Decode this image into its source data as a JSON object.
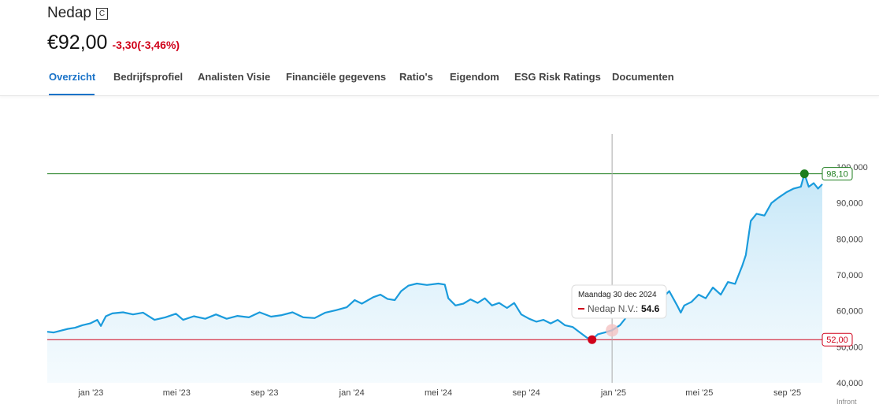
{
  "header": {
    "company": "Nedap",
    "badge": "C",
    "price": "€92,00",
    "change": "-3,30(-3,46%)"
  },
  "tabs": [
    {
      "label": "Overzicht",
      "active": true
    },
    {
      "label": "Bedrijfsprofiel",
      "active": false
    },
    {
      "label": "Analisten Visie",
      "active": false
    },
    {
      "label": "Financiële gegevens",
      "active": false
    },
    {
      "label": "Ratio's",
      "active": false
    },
    {
      "label": "Eigendom",
      "active": false
    },
    {
      "label": "ESG Risk Ratings",
      "active": false
    },
    {
      "label": "Documenten",
      "active": false
    }
  ],
  "colors": {
    "accent": "#1a73c8",
    "line": "#1a9bdc",
    "negative": "#d0021b",
    "high": "#1e7e1e",
    "low": "#d0021b"
  },
  "chart_data": {
    "type": "area",
    "series": [
      {
        "name": "Nedap N.V.",
        "points": [
          [
            "2022-11-01",
            54.2
          ],
          [
            "2022-11-10",
            54.0
          ],
          [
            "2022-11-20",
            54.5
          ],
          [
            "2022-11-30",
            55.0
          ],
          [
            "2022-12-10",
            55.3
          ],
          [
            "2022-12-20",
            56.0
          ],
          [
            "2022-12-31",
            56.5
          ],
          [
            "2023-01-10",
            57.5
          ],
          [
            "2023-01-15",
            55.8
          ],
          [
            "2023-01-22",
            58.5
          ],
          [
            "2023-01-31",
            59.3
          ],
          [
            "2023-02-15",
            59.6
          ],
          [
            "2023-03-01",
            59.0
          ],
          [
            "2023-03-15",
            59.5
          ],
          [
            "2023-03-31",
            57.5
          ],
          [
            "2023-04-15",
            58.2
          ],
          [
            "2023-04-30",
            59.2
          ],
          [
            "2023-05-10",
            57.5
          ],
          [
            "2023-05-25",
            58.5
          ],
          [
            "2023-06-10",
            57.8
          ],
          [
            "2023-06-25",
            59.0
          ],
          [
            "2023-07-10",
            57.8
          ],
          [
            "2023-07-25",
            58.6
          ],
          [
            "2023-08-10",
            58.2
          ],
          [
            "2023-08-25",
            59.6
          ],
          [
            "2023-09-10",
            58.4
          ],
          [
            "2023-09-25",
            58.8
          ],
          [
            "2023-10-10",
            59.6
          ],
          [
            "2023-10-25",
            58.2
          ],
          [
            "2023-11-10",
            58.0
          ],
          [
            "2023-11-25",
            59.5
          ],
          [
            "2023-12-10",
            60.2
          ],
          [
            "2023-12-25",
            61.0
          ],
          [
            "2024-01-05",
            63.0
          ],
          [
            "2024-01-15",
            62.0
          ],
          [
            "2024-01-31",
            63.8
          ],
          [
            "2024-02-10",
            64.5
          ],
          [
            "2024-02-20",
            63.3
          ],
          [
            "2024-03-01",
            63.0
          ],
          [
            "2024-03-10",
            65.5
          ],
          [
            "2024-03-20",
            67.0
          ],
          [
            "2024-04-01",
            67.6
          ],
          [
            "2024-04-15",
            67.2
          ],
          [
            "2024-05-01",
            67.6
          ],
          [
            "2024-05-10",
            67.3
          ],
          [
            "2024-05-15",
            63.5
          ],
          [
            "2024-05-25",
            61.5
          ],
          [
            "2024-06-05",
            62.0
          ],
          [
            "2024-06-15",
            63.2
          ],
          [
            "2024-06-25",
            62.2
          ],
          [
            "2024-07-05",
            63.5
          ],
          [
            "2024-07-15",
            61.5
          ],
          [
            "2024-07-25",
            62.2
          ],
          [
            "2024-08-05",
            60.8
          ],
          [
            "2024-08-15",
            62.2
          ],
          [
            "2024-08-25",
            59.0
          ],
          [
            "2024-09-05",
            57.8
          ],
          [
            "2024-09-15",
            57.0
          ],
          [
            "2024-09-25",
            57.5
          ],
          [
            "2024-10-05",
            56.5
          ],
          [
            "2024-10-15",
            57.5
          ],
          [
            "2024-10-25",
            56.0
          ],
          [
            "2024-11-05",
            55.5
          ],
          [
            "2024-11-15",
            54.0
          ],
          [
            "2024-11-25",
            52.5
          ],
          [
            "2024-12-02",
            52.0
          ],
          [
            "2024-12-10",
            53.5
          ],
          [
            "2024-12-20",
            54.0
          ],
          [
            "2024-12-30",
            54.6
          ],
          [
            "2025-01-10",
            56.0
          ],
          [
            "2025-01-20",
            58.5
          ],
          [
            "2025-01-31",
            60.2
          ],
          [
            "2025-02-10",
            62.5
          ],
          [
            "2025-02-20",
            65.5
          ],
          [
            "2025-03-01",
            67.0
          ],
          [
            "2025-03-10",
            63.5
          ],
          [
            "2025-03-20",
            65.5
          ],
          [
            "2025-03-31",
            61.5
          ],
          [
            "2025-04-05",
            59.5
          ],
          [
            "2025-04-10",
            61.5
          ],
          [
            "2025-04-20",
            62.5
          ],
          [
            "2025-04-30",
            64.5
          ],
          [
            "2025-05-10",
            63.5
          ],
          [
            "2025-05-20",
            66.5
          ],
          [
            "2025-05-31",
            64.5
          ],
          [
            "2025-06-10",
            68.0
          ],
          [
            "2025-06-20",
            67.5
          ],
          [
            "2025-06-30",
            72.5
          ],
          [
            "2025-07-05",
            75.5
          ],
          [
            "2025-07-12",
            85.0
          ],
          [
            "2025-07-20",
            87.0
          ],
          [
            "2025-07-31",
            86.5
          ],
          [
            "2025-08-10",
            90.0
          ],
          [
            "2025-08-20",
            91.5
          ],
          [
            "2025-08-31",
            93.0
          ],
          [
            "2025-09-10",
            94.0
          ],
          [
            "2025-09-20",
            94.5
          ],
          [
            "2025-09-25",
            98.1
          ],
          [
            "2025-10-01",
            94.5
          ],
          [
            "2025-10-08",
            95.5
          ],
          [
            "2025-10-14",
            94.0
          ],
          [
            "2025-10-20",
            95.2
          ]
        ]
      }
    ],
    "x_ticks": [
      {
        "date": "2023-01-01",
        "label": "jan '23"
      },
      {
        "date": "2023-05-01",
        "label": "mei '23"
      },
      {
        "date": "2023-09-01",
        "label": "sep '23"
      },
      {
        "date": "2024-01-01",
        "label": "jan '24"
      },
      {
        "date": "2024-05-01",
        "label": "mei '24"
      },
      {
        "date": "2024-09-01",
        "label": "sep '24"
      },
      {
        "date": "2025-01-01",
        "label": "jan '25"
      },
      {
        "date": "2025-05-01",
        "label": "mei '25"
      },
      {
        "date": "2025-09-01",
        "label": "sep '25"
      }
    ],
    "y_ticks": [
      {
        "value": 40,
        "label": "40,000"
      },
      {
        "value": 50,
        "label": "50,000"
      },
      {
        "value": 60,
        "label": "60,000"
      },
      {
        "value": 70,
        "label": "70,000"
      },
      {
        "value": 80,
        "label": "80,000"
      },
      {
        "value": 90,
        "label": "90,000"
      },
      {
        "value": 100,
        "label": "100,000"
      }
    ],
    "xlim": [
      "2022-11-01",
      "2025-10-20"
    ],
    "ylim": [
      40,
      100
    ],
    "high": {
      "value": 98.1,
      "label": "98,10",
      "date": "2025-09-25"
    },
    "low": {
      "value": 52.0,
      "label": "52,00",
      "date": "2024-12-02"
    },
    "tooltip": {
      "date": "2024-12-30",
      "date_label": "Maandag 30 dec 2024",
      "series_label": "Nedap N.V.:",
      "value_label": "54.6",
      "value": 54.6
    },
    "credit": "Infront",
    "grid": false
  }
}
